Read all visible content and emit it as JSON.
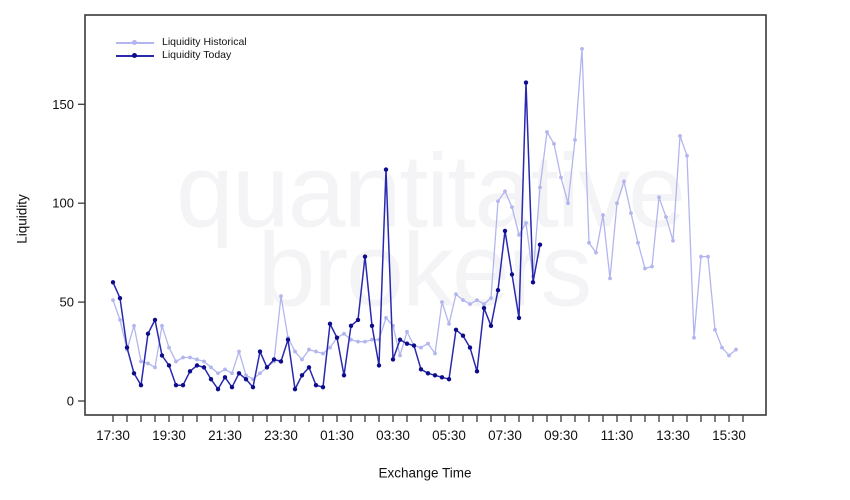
{
  "watermark": {
    "line1": "quantitative",
    "line2": "brokers"
  },
  "axes": {
    "y_label": "Liquidity",
    "x_label": "Exchange Time",
    "y_ticks": [
      0,
      50,
      100,
      150
    ],
    "x_tick_labels": [
      "17:30",
      "19:30",
      "21:30",
      "23:30",
      "01:30",
      "03:30",
      "05:30",
      "07:30",
      "09:30",
      "11:30",
      "13:30",
      "15:30"
    ]
  },
  "legend": {
    "items": [
      {
        "label": "Liquidity Historical",
        "line_color": "#b3b6ee",
        "marker_color": "#b3b6ee"
      },
      {
        "label": "Liquidity Today",
        "line_color": "#2929b0",
        "marker_color": "#0d0d8a"
      }
    ]
  },
  "chart_data": {
    "type": "line",
    "title": "",
    "xlabel": "Exchange Time",
    "ylabel": "Liquidity",
    "x_start": "17:30",
    "x_interval_minutes": 15,
    "x_axis_tick_every_minutes": 30,
    "x_axis_label_every_minutes": 120,
    "ylim": [
      0,
      195
    ],
    "yticks": [
      0,
      50,
      100,
      150
    ],
    "grid": false,
    "legend_position": "top-left",
    "series": [
      {
        "name": "Liquidity Historical",
        "color": "#b3b6ee",
        "marker_color": "#b3b6ee",
        "values": [
          51,
          41,
          26,
          38,
          20,
          19,
          17,
          38,
          27,
          20,
          22,
          22,
          21,
          20,
          17,
          14,
          16,
          14,
          25,
          13,
          11,
          14,
          17,
          20,
          53,
          32,
          25,
          21,
          26,
          25,
          24,
          27,
          32,
          34,
          31,
          30,
          30,
          31,
          31,
          42,
          38,
          23,
          35,
          28,
          27,
          29,
          24,
          50,
          39,
          54,
          51,
          49,
          51,
          49,
          52,
          101,
          106,
          98,
          84,
          90,
          63,
          108,
          136,
          130,
          113,
          100,
          132,
          178,
          80,
          75,
          94,
          62,
          100,
          111,
          95,
          80,
          67,
          68,
          103,
          93,
          81,
          134,
          124,
          32,
          73,
          73,
          36,
          27,
          23,
          26
        ]
      },
      {
        "name": "Liquidity Today",
        "color": "#2929b0",
        "marker_color": "#0d0d8a",
        "values": [
          60,
          52,
          27,
          14,
          8,
          34,
          41,
          23,
          18,
          8,
          8,
          15,
          18,
          17,
          11,
          6,
          12,
          7,
          14,
          11,
          7,
          25,
          17,
          21,
          20,
          31,
          6,
          13,
          17,
          8,
          7,
          39,
          32,
          13,
          38,
          41,
          73,
          38,
          18,
          117,
          21,
          31,
          29,
          28,
          16,
          14,
          13,
          12,
          11,
          36,
          33,
          27,
          15,
          47,
          38,
          56,
          86,
          64,
          42,
          161,
          60,
          79
        ]
      }
    ]
  }
}
